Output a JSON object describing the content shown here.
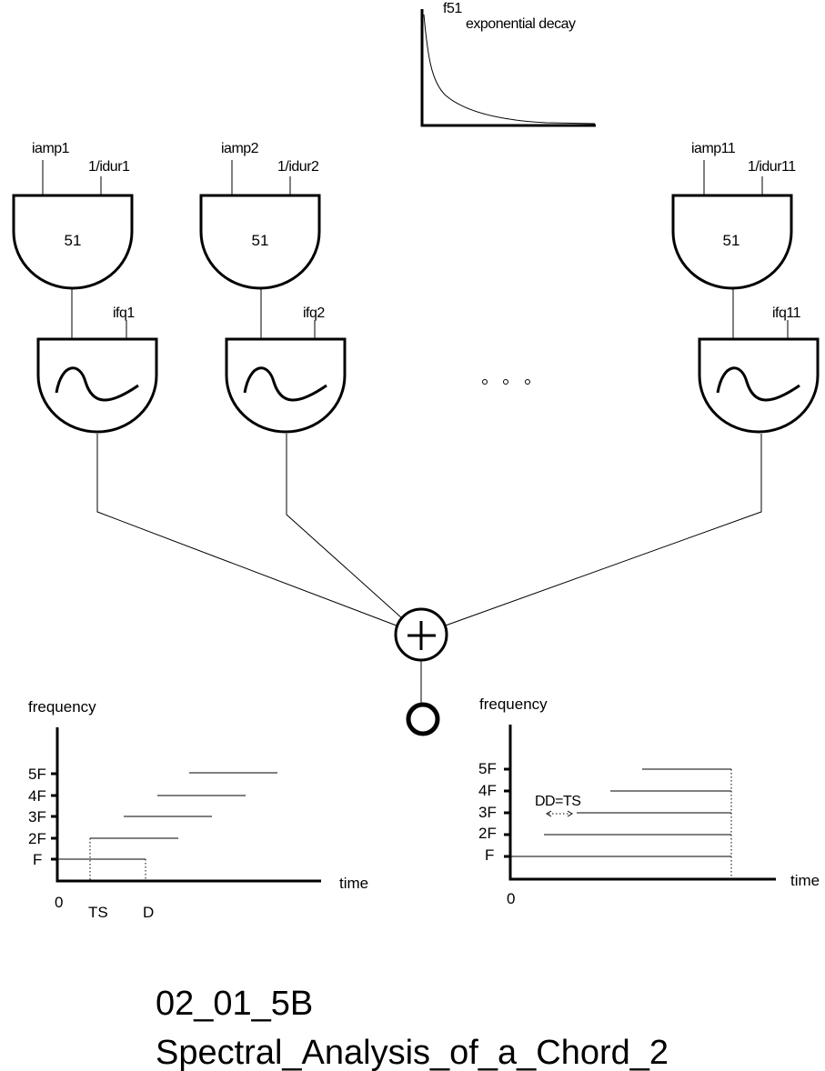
{
  "decay_plot": {
    "table_label": "f51",
    "caption": "exponential decay"
  },
  "voices": [
    {
      "amp": "iamp1",
      "dur": "1/idur1",
      "table": "51",
      "freq": "ifq1"
    },
    {
      "amp": "iamp2",
      "dur": "1/idur2",
      "table": "51",
      "freq": "ifq2"
    },
    {
      "amp": "iamp11",
      "dur": "1/idur11",
      "table": "51",
      "freq": "ifq11"
    }
  ],
  "graph_left": {
    "ylabel": "frequency",
    "xlabel": "time",
    "y_ticks": [
      "5F",
      "4F",
      "3F",
      "2F",
      "F"
    ],
    "x_ticks": [
      "0",
      "TS",
      "D"
    ]
  },
  "graph_right": {
    "ylabel": "frequency",
    "xlabel": "time",
    "y_ticks": [
      "5F",
      "4F",
      "3F",
      "2F",
      "F"
    ],
    "x_ticks": [
      "0"
    ],
    "annotation": "DD=TS"
  },
  "caption": {
    "code": "02_01_5B",
    "title": "Spectral_Analysis_of_a_Chord_2"
  }
}
